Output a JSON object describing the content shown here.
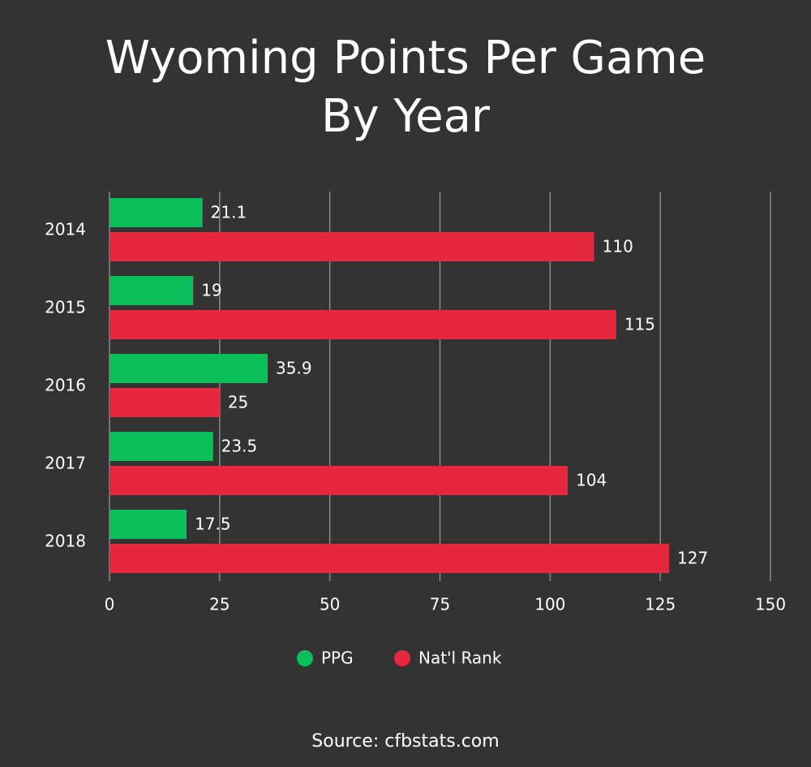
{
  "chart_data": {
    "type": "hbar",
    "title": "Wyoming Points Per Game By Year",
    "categories": [
      "2014",
      "2015",
      "2016",
      "2017",
      "2018"
    ],
    "series": [
      {
        "name": "PPG",
        "color": "#0bbf5b",
        "values": [
          21.1,
          19,
          35.9,
          23.5,
          17.5
        ]
      },
      {
        "name": "Nat'l Rank",
        "color": "#e5283d",
        "values": [
          110,
          115,
          25,
          104,
          127
        ]
      }
    ],
    "xlim": [
      0,
      150
    ],
    "xticks": [
      0,
      25,
      50,
      75,
      100,
      125,
      150
    ],
    "grid": true,
    "legend": "bottom",
    "source": "Source: cfbstats.com"
  }
}
